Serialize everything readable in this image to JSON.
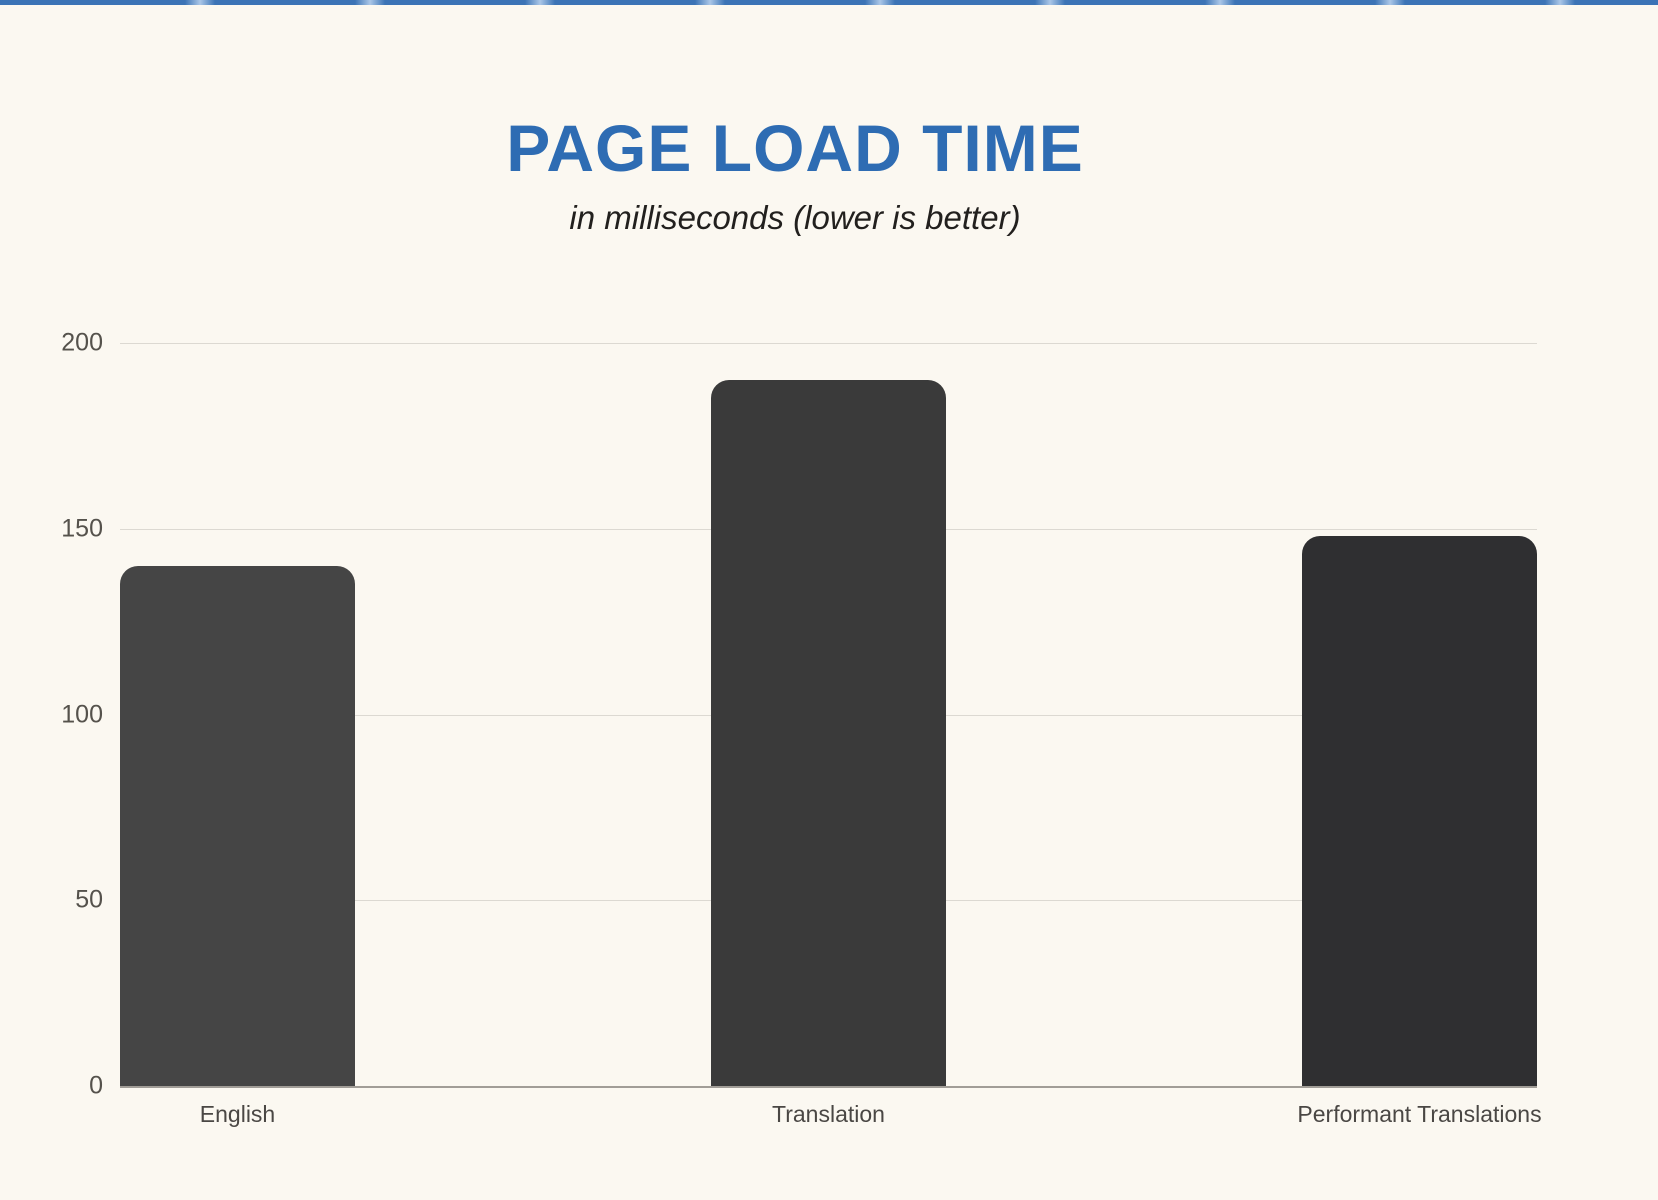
{
  "page": {
    "title": "PAGE LOAD TIME",
    "subtitle": "in milliseconds (lower is better)",
    "background_color": "#fbf8f1",
    "title_color": "#2e6cb3",
    "top_strip_color": "#3b73b6"
  },
  "chart_data": {
    "type": "bar",
    "title": "PAGE LOAD TIME",
    "subtitle": "in milliseconds (lower is better)",
    "categories": [
      "English",
      "Translation",
      "Performant Translations"
    ],
    "values": [
      140,
      190,
      148
    ],
    "unit": "milliseconds",
    "xlabel": "",
    "ylabel": "",
    "ylim": [
      0,
      200
    ],
    "yticks": [
      0,
      50,
      100,
      150,
      200
    ],
    "grid": true,
    "legend": false,
    "bar_colors": [
      "#454545",
      "#3a3a3a",
      "#2f2f31"
    ],
    "gridline_color": "#dcd9d2",
    "baseline_color": "#a19d97",
    "tick_label_color": "#55524c"
  }
}
